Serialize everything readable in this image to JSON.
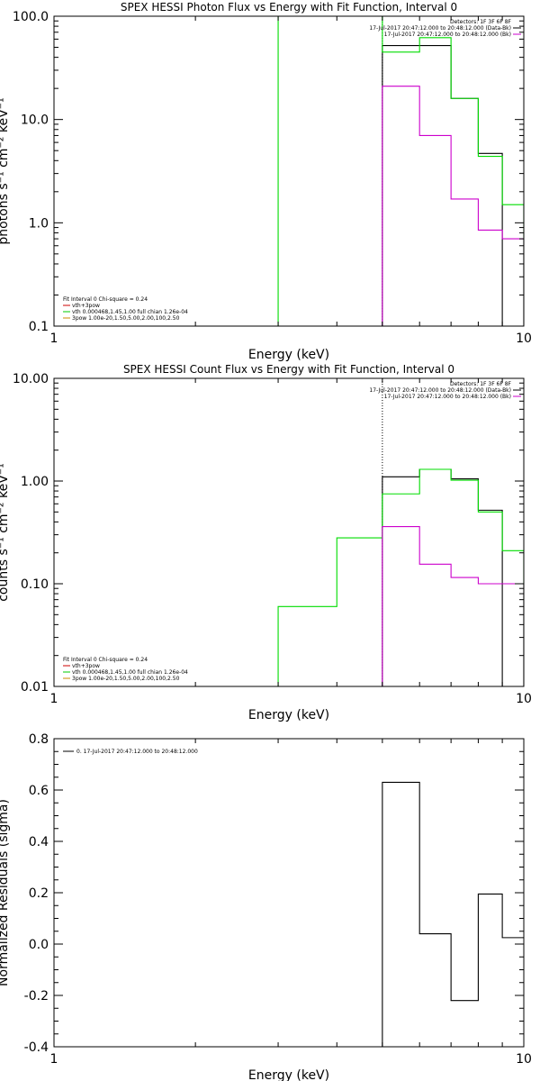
{
  "chart_data": [
    {
      "type": "line",
      "title": "SPEX HESSI Photon Flux vs Energy with Fit Function, Interval 0",
      "xlabel": "Energy (keV)",
      "ylabel": "photons s⁻¹ cm⁻² keV⁻¹",
      "xscale": "log",
      "yscale": "log",
      "xlim": [
        1,
        10
      ],
      "ylim": [
        0.1,
        100
      ],
      "x_ticks": [
        "1",
        "10"
      ],
      "y_ticks": [
        {
          "value": 100,
          "label": "100.0"
        },
        {
          "value": 10,
          "label": "10.0"
        },
        {
          "value": 1,
          "label": "1.0"
        },
        {
          "value": 0.1,
          "label": "0.1"
        }
      ],
      "legend_top_right": [
        {
          "label": "Detectors: 1F 3F 6F 8F",
          "color": null
        },
        {
          "label": "17-Jul-2017 20:47:12.000 to 20:48:12.000 (Data-Bk)",
          "color": "#000000"
        },
        {
          "label": "17-Jul-2017 20:47:12.000 to 20:48:12.000 (Bk)",
          "color": "#cc00cc"
        }
      ],
      "legend_bottom_left": [
        {
          "label": "Fit Interval 0   Chi-square = 0.24",
          "color": null
        },
        {
          "label": "vth+3pow",
          "color": "#cc0000"
        },
        {
          "label": "vth 0.000468,1.45,1.00  full chian 1.26e-04",
          "color": "#00cc00"
        },
        {
          "label": "3pow 1.00e-20,1.50,5.00,2.00,100,2.50",
          "color": "#cc8800"
        }
      ],
      "series": [
        {
          "color": "#000000",
          "edges": [
            5,
            6,
            7,
            8,
            9
          ],
          "values": [
            52,
            52,
            16,
            4.7
          ]
        },
        {
          "color": "#00dd00",
          "edges": [
            3,
            4,
            5,
            6,
            7,
            8,
            9,
            10
          ],
          "values": [
            100,
            100,
            45,
            62,
            16,
            4.4,
            1.5
          ]
        },
        {
          "color": "#cc00cc",
          "edges": [
            5,
            6,
            7,
            8,
            9,
            10
          ],
          "values": [
            21,
            7,
            1.7,
            0.85,
            0.7
          ]
        }
      ],
      "vlines": [
        {
          "x": 5,
          "color": "#000000",
          "style": "dotted"
        }
      ]
    },
    {
      "type": "line",
      "title": "SPEX HESSI Count Flux vs Energy with Fit Function, Interval 0",
      "xlabel": "Energy (keV)",
      "ylabel": "counts s⁻¹ cm⁻² keV⁻¹",
      "xscale": "log",
      "yscale": "log",
      "xlim": [
        1,
        10
      ],
      "ylim": [
        0.01,
        10
      ],
      "x_ticks": [
        "1",
        "10"
      ],
      "y_ticks": [
        {
          "value": 10,
          "label": "10.00"
        },
        {
          "value": 1,
          "label": "1.00"
        },
        {
          "value": 0.1,
          "label": "0.10"
        },
        {
          "value": 0.01,
          "label": "0.01"
        }
      ],
      "legend_top_right": [
        {
          "label": "Detectors: 1F 3F 6F 8F",
          "color": null
        },
        {
          "label": "17-Jul-2017 20:47:12.000 to 20:48:12.000 (Data-Bk)",
          "color": "#000000"
        },
        {
          "label": "17-Jul-2017 20:47:12.000 to 20:48:12.000 (Bk)",
          "color": "#cc00cc"
        }
      ],
      "legend_bottom_left": [
        {
          "label": "Fit Interval 0   Chi-square = 0.24",
          "color": null
        },
        {
          "label": "vth+3pow",
          "color": "#cc0000"
        },
        {
          "label": "vth 0.000468,1.45,1.00  full chian 1.26e-04",
          "color": "#00cc00"
        },
        {
          "label": "3pow 1.00e-20,1.50,5.00,2.00,100,2.50",
          "color": "#cc8800"
        }
      ],
      "series": [
        {
          "color": "#000000",
          "edges": [
            5,
            6,
            7,
            8,
            9
          ],
          "values": [
            1.1,
            1.3,
            1.05,
            0.52
          ]
        },
        {
          "color": "#00dd00",
          "edges": [
            3,
            4,
            5,
            6,
            7,
            8,
            9,
            10
          ],
          "values": [
            0.06,
            0.28,
            0.75,
            1.3,
            1.02,
            0.5,
            0.21
          ]
        },
        {
          "color": "#cc00cc",
          "edges": [
            5,
            6,
            7,
            8,
            9,
            10
          ],
          "values": [
            0.36,
            0.155,
            0.115,
            0.1,
            0.1
          ]
        }
      ],
      "vlines": [
        {
          "x": 5,
          "color": "#000000",
          "style": "dotted"
        }
      ]
    },
    {
      "type": "line",
      "title": "",
      "xlabel": "Energy (keV)",
      "ylabel": "Normalized Residuals (sigma)",
      "xscale": "log",
      "yscale": "linear",
      "xlim": [
        1,
        10
      ],
      "ylim": [
        -0.4,
        0.8
      ],
      "x_ticks": [
        "1",
        "10"
      ],
      "y_ticks": [
        {
          "value": 0.8,
          "label": "0.8"
        },
        {
          "value": 0.6,
          "label": "0.6"
        },
        {
          "value": 0.4,
          "label": "0.4"
        },
        {
          "value": 0.2,
          "label": "0.2"
        },
        {
          "value": 0.0,
          "label": "0.0"
        },
        {
          "value": -0.2,
          "label": "-0.2"
        },
        {
          "value": -0.4,
          "label": "-0.4"
        }
      ],
      "legend_top_left": [
        {
          "label": "0. 17-Jul-2017 20:47:12.000 to 20:48:12.000",
          "color": "#000000"
        }
      ],
      "series": [
        {
          "color": "#000000",
          "edges": [
            5,
            6,
            7,
            8,
            9,
            10
          ],
          "values": [
            0.63,
            0.04,
            -0.22,
            0.195,
            0.025
          ],
          "start_from": -0.4
        }
      ]
    }
  ]
}
